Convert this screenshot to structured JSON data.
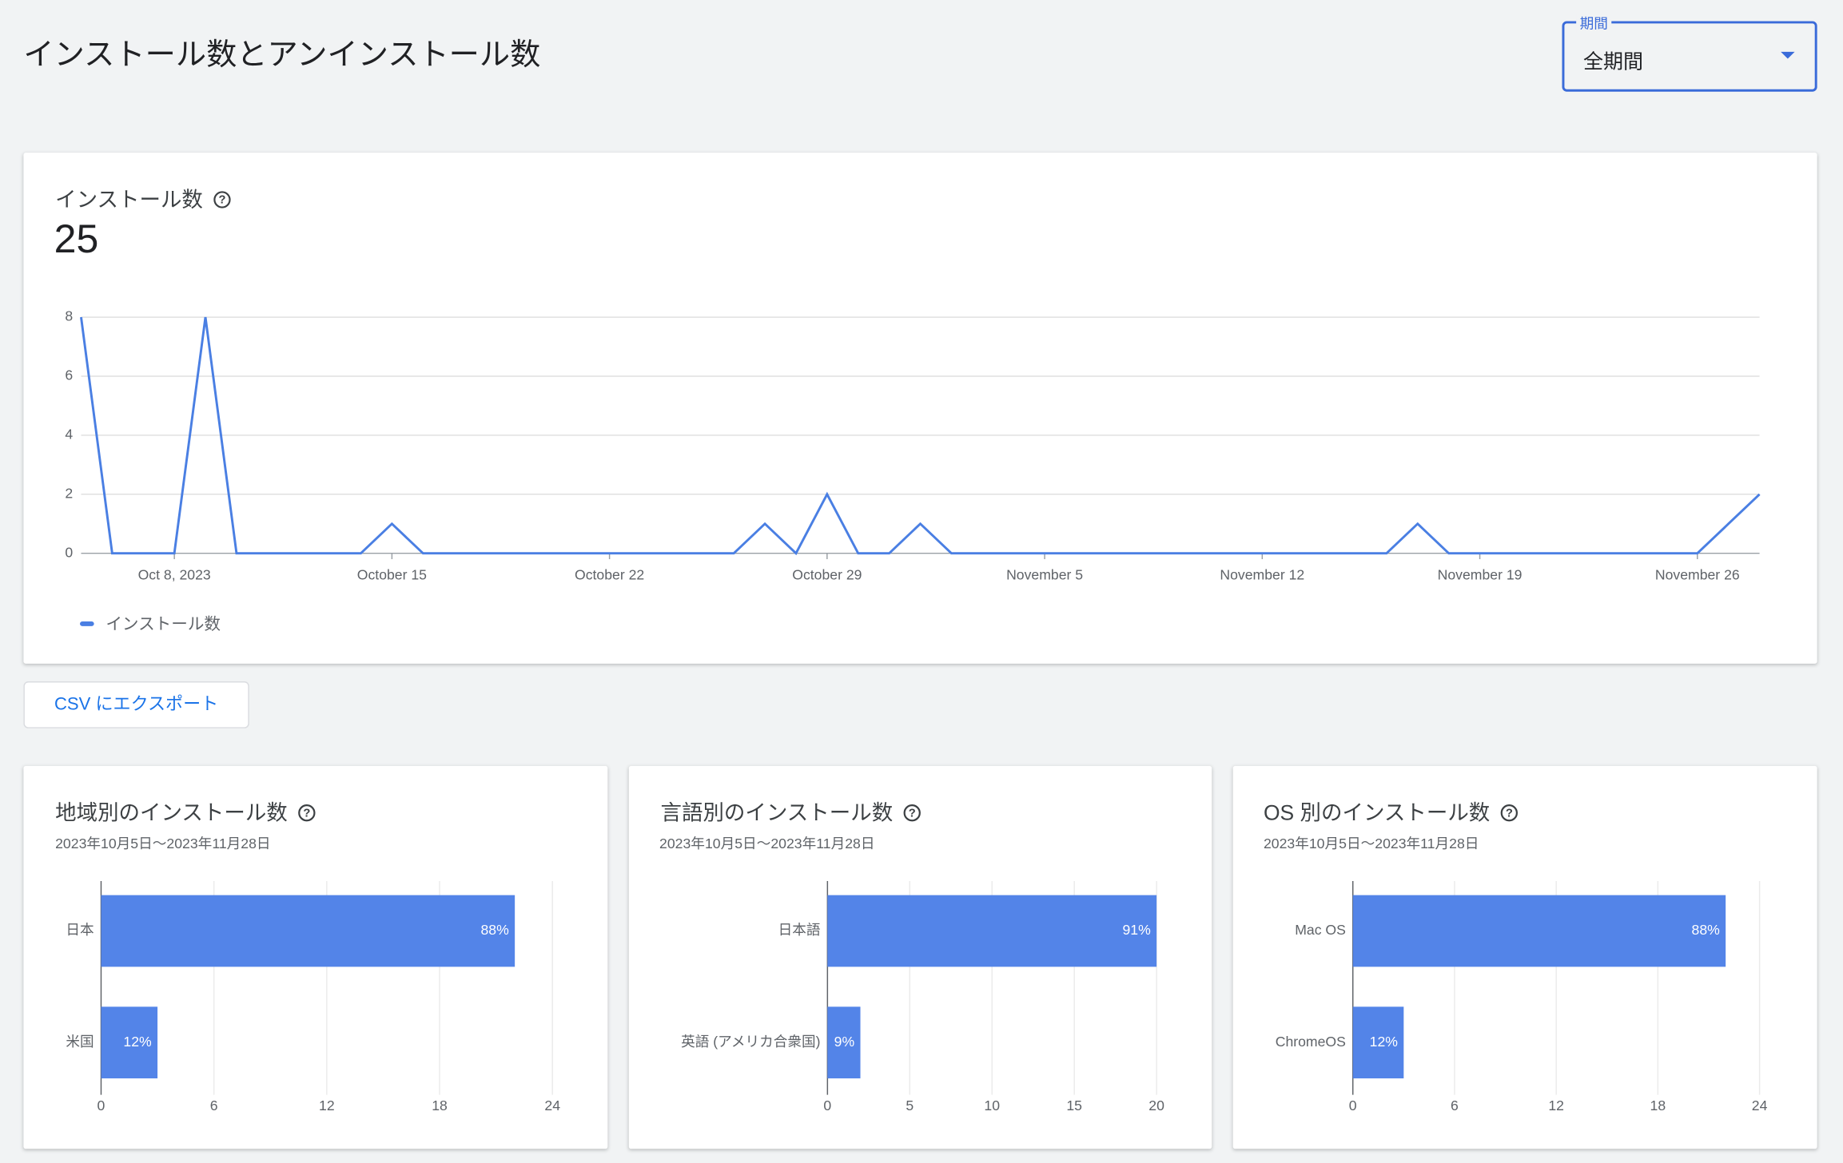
{
  "page_title": "インストール数とアンインストール数",
  "period_filter": {
    "label": "期間",
    "value": "全期間"
  },
  "export_button": "CSV にエクスポート",
  "chart_data": [
    {
      "type": "line",
      "title": "インストール数",
      "total": 25,
      "x": [
        "2023-10-05",
        "2023-10-06",
        "2023-10-07",
        "2023-10-08",
        "2023-10-09",
        "2023-10-10",
        "2023-10-11",
        "2023-10-12",
        "2023-10-13",
        "2023-10-14",
        "2023-10-15",
        "2023-10-16",
        "2023-10-17",
        "2023-10-18",
        "2023-10-19",
        "2023-10-20",
        "2023-10-21",
        "2023-10-22",
        "2023-10-23",
        "2023-10-24",
        "2023-10-25",
        "2023-10-26",
        "2023-10-27",
        "2023-10-28",
        "2023-10-29",
        "2023-10-30",
        "2023-10-31",
        "2023-11-01",
        "2023-11-02",
        "2023-11-03",
        "2023-11-04",
        "2023-11-05",
        "2023-11-06",
        "2023-11-07",
        "2023-11-08",
        "2023-11-09",
        "2023-11-10",
        "2023-11-11",
        "2023-11-12",
        "2023-11-13",
        "2023-11-14",
        "2023-11-15",
        "2023-11-16",
        "2023-11-17",
        "2023-11-18",
        "2023-11-19",
        "2023-11-20",
        "2023-11-21",
        "2023-11-22",
        "2023-11-23",
        "2023-11-24",
        "2023-11-25",
        "2023-11-26",
        "2023-11-27",
        "2023-11-28"
      ],
      "series": [
        {
          "name": "インストール数",
          "color": "#4a7fe3",
          "values": [
            8,
            0,
            0,
            0,
            8,
            0,
            0,
            0,
            0,
            0,
            1,
            0,
            0,
            0,
            0,
            0,
            0,
            0,
            0,
            0,
            0,
            0,
            1,
            0,
            2,
            0,
            0,
            1,
            0,
            0,
            0,
            0,
            0,
            0,
            0,
            0,
            0,
            0,
            0,
            0,
            0,
            0,
            0,
            1,
            0,
            0,
            0,
            0,
            0,
            0,
            0,
            0,
            0,
            1,
            2
          ]
        }
      ],
      "xlim": [
        "2023-10-05",
        "2023-11-28"
      ],
      "xticks": [
        {
          "value": "2023-10-08",
          "label": "Oct 8, 2023"
        },
        {
          "value": "2023-10-15",
          "label": "October 15"
        },
        {
          "value": "2023-10-22",
          "label": "October 22"
        },
        {
          "value": "2023-10-29",
          "label": "October 29"
        },
        {
          "value": "2023-11-05",
          "label": "November 5"
        },
        {
          "value": "2023-11-12",
          "label": "November 12"
        },
        {
          "value": "2023-11-19",
          "label": "November 19"
        },
        {
          "value": "2023-11-26",
          "label": "November 26"
        }
      ],
      "ylim": [
        0,
        8
      ],
      "yticks": [
        0,
        2,
        4,
        6,
        8
      ],
      "grid": true
    },
    {
      "type": "bar",
      "orientation": "horizontal",
      "title": "地域別のインストール数",
      "subtitle": "2023年10月5日〜2023年11月28日",
      "categories": [
        "日本",
        "米国"
      ],
      "values": [
        22,
        3
      ],
      "share_labels": [
        "88%",
        "12%"
      ],
      "color": "#5384e8",
      "xlim": [
        0,
        24
      ],
      "xticks": [
        0,
        6,
        12,
        18,
        24
      ],
      "grid": true
    },
    {
      "type": "bar",
      "orientation": "horizontal",
      "title": "言語別のインストール数",
      "subtitle": "2023年10月5日〜2023年11月28日",
      "categories": [
        "日本語",
        "英語 (アメリカ合衆国)"
      ],
      "values": [
        20,
        2
      ],
      "share_labels": [
        "91%",
        "9%"
      ],
      "color": "#5384e8",
      "xlim": [
        0,
        20
      ],
      "xticks": [
        0,
        5,
        10,
        15,
        20
      ],
      "grid": true
    },
    {
      "type": "bar",
      "orientation": "horizontal",
      "title": "OS 別のインストール数",
      "subtitle": "2023年10月5日〜2023年11月28日",
      "categories": [
        "Mac OS",
        "ChromeOS"
      ],
      "values": [
        22,
        3
      ],
      "share_labels": [
        "88%",
        "12%"
      ],
      "color": "#5384e8",
      "xlim": [
        0,
        24
      ],
      "xticks": [
        0,
        6,
        12,
        18,
        24
      ],
      "grid": true
    }
  ]
}
